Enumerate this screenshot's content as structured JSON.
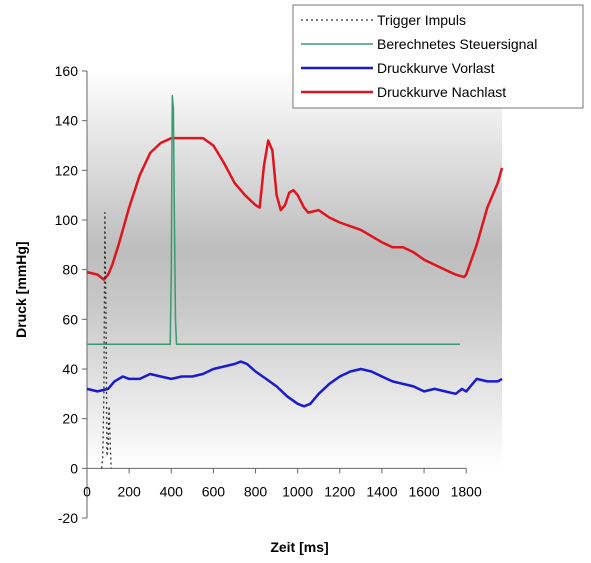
{
  "chart_data": {
    "type": "line",
    "title": "",
    "xlabel": "Zeit [ms]",
    "ylabel": "Druck [mmHg]",
    "xlim": [
      0,
      1970
    ],
    "ylim": [
      -20,
      160
    ],
    "x_ticks": [
      0,
      200,
      400,
      600,
      800,
      1000,
      1200,
      1400,
      1600,
      1800
    ],
    "x_tick_labels": [
      "0",
      "200",
      "400",
      "600",
      "800",
      "1000",
      "1200",
      "1400",
      "1600",
      "1800"
    ],
    "y_ticks": [
      -20,
      0,
      20,
      40,
      60,
      80,
      100,
      120,
      140,
      160
    ],
    "y_tick_labels": [
      "-20",
      "0",
      "20",
      "40",
      "60",
      "80",
      "100",
      "120",
      "140",
      "160"
    ],
    "grid": false,
    "legend_position": "top-right",
    "series": [
      {
        "name": "Trigger Impuls",
        "color": "#333333",
        "style": "dotted",
        "x": [
          70,
          75,
          80,
          85,
          90,
          95,
          100,
          105,
          110,
          115
        ],
        "y": [
          0,
          5,
          30,
          103,
          60,
          5,
          10,
          25,
          10,
          0
        ]
      },
      {
        "name": "Berechnetes Steuersignal",
        "color": "#3a9a74",
        "style": "solid",
        "x": [
          0,
          395,
          400,
          405,
          410,
          415,
          420,
          425,
          1770
        ],
        "y": [
          50,
          50,
          80,
          150,
          145,
          100,
          60,
          50,
          50
        ]
      },
      {
        "name": "Druckkurve Vorlast",
        "color": "#1a1ad0",
        "style": "solid",
        "x": [
          0,
          50,
          100,
          130,
          170,
          200,
          250,
          300,
          350,
          400,
          450,
          500,
          550,
          600,
          650,
          700,
          730,
          760,
          800,
          850,
          900,
          950,
          1000,
          1030,
          1060,
          1100,
          1150,
          1200,
          1250,
          1300,
          1350,
          1400,
          1450,
          1500,
          1550,
          1600,
          1650,
          1700,
          1750,
          1780,
          1800,
          1850,
          1900,
          1950,
          1970
        ],
        "y": [
          32,
          31,
          32,
          35,
          37,
          36,
          36,
          38,
          37,
          36,
          37,
          37,
          38,
          40,
          41,
          42,
          43,
          42,
          39,
          36,
          33,
          29,
          26,
          25,
          26,
          30,
          34,
          37,
          39,
          40,
          39,
          37,
          35,
          34,
          33,
          31,
          32,
          31,
          30,
          32,
          31,
          36,
          35,
          35,
          36
        ]
      },
      {
        "name": "Druckkurve Nachlast",
        "color": "#e0141e",
        "style": "solid",
        "x": [
          0,
          50,
          80,
          100,
          120,
          150,
          200,
          250,
          300,
          350,
          400,
          450,
          500,
          550,
          600,
          650,
          700,
          750,
          800,
          820,
          840,
          860,
          880,
          900,
          920,
          940,
          960,
          980,
          1000,
          1030,
          1050,
          1100,
          1150,
          1200,
          1300,
          1400,
          1450,
          1500,
          1550,
          1600,
          1650,
          1700,
          1750,
          1790,
          1800,
          1850,
          1900,
          1950,
          1970
        ],
        "y": [
          79,
          78,
          76,
          78,
          82,
          90,
          105,
          118,
          127,
          131,
          133,
          133,
          133,
          133,
          130,
          123,
          115,
          110,
          106,
          105,
          122,
          132,
          128,
          110,
          104,
          106,
          111,
          112,
          110,
          105,
          103,
          104,
          101,
          99,
          96,
          91,
          89,
          89,
          87,
          84,
          82,
          80,
          78,
          77,
          78,
          90,
          105,
          115,
          121
        ]
      }
    ]
  }
}
